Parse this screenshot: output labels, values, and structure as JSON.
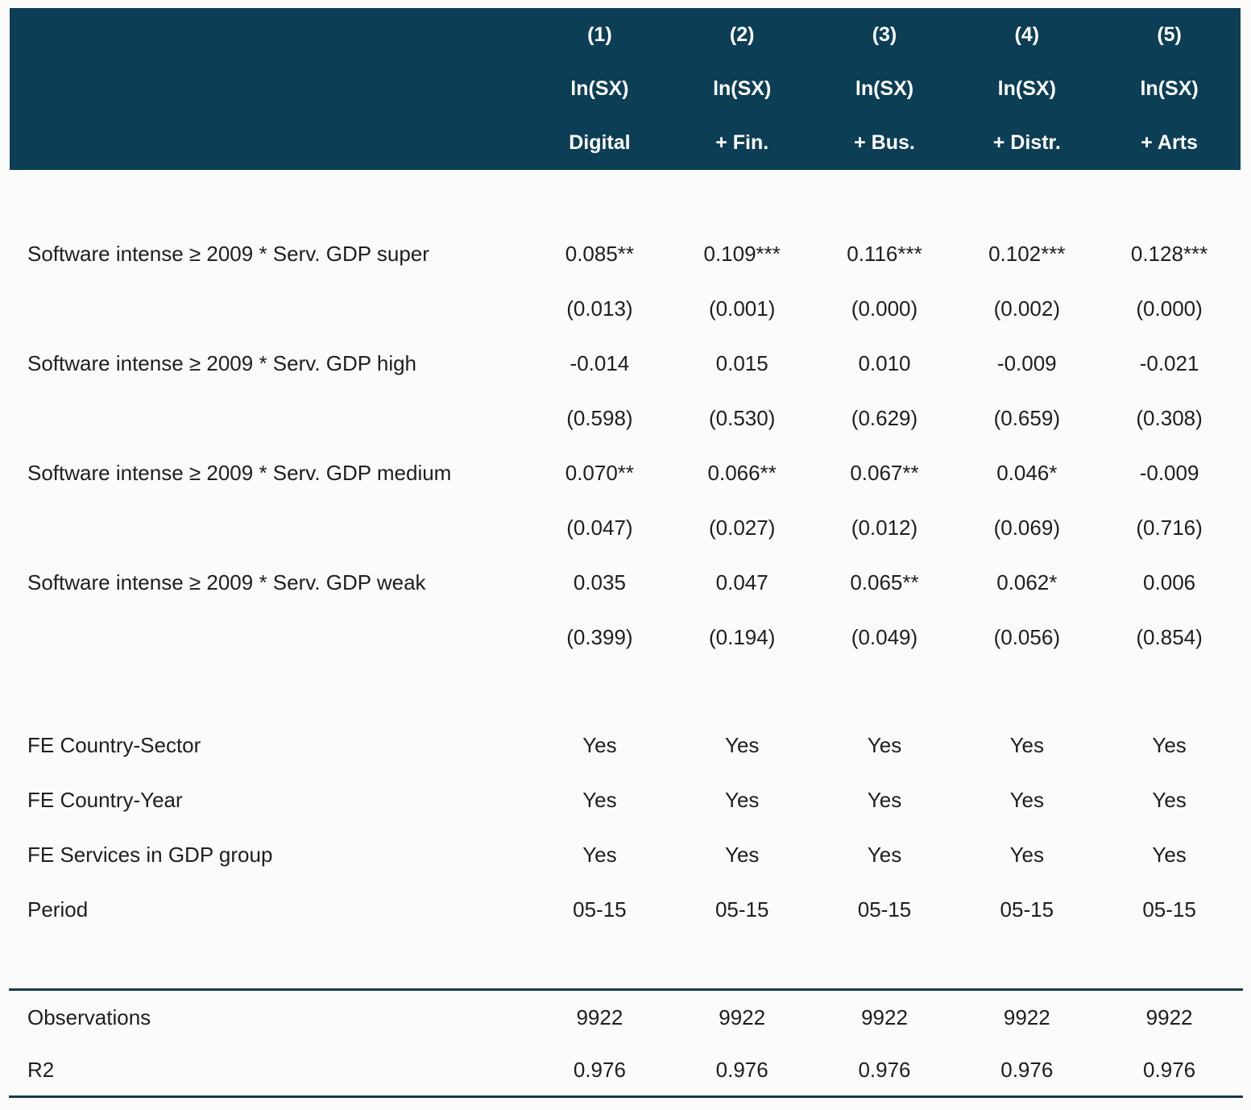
{
  "table": {
    "header": {
      "columns": [
        {
          "num": "(1)",
          "dep": "ln(SX)",
          "model": "Digital"
        },
        {
          "num": "(2)",
          "dep": "ln(SX)",
          "model": "+ Fin."
        },
        {
          "num": "(3)",
          "dep": "ln(SX)",
          "model": "+ Bus."
        },
        {
          "num": "(4)",
          "dep": "ln(SX)",
          "model": "+ Distr."
        },
        {
          "num": "(5)",
          "dep": "ln(SX)",
          "model": "+ Arts"
        }
      ]
    },
    "coef_rows": [
      {
        "label": "Software intense ≥ 2009 * Serv. GDP super",
        "coefs": [
          "0.085**",
          "0.109***",
          "0.116***",
          "0.102***",
          "0.128***"
        ],
        "pvals": [
          "(0.013)",
          "(0.001)",
          "(0.000)",
          "(0.002)",
          "(0.000)"
        ]
      },
      {
        "label": "Software intense ≥ 2009 * Serv. GDP high",
        "coefs": [
          "-0.014",
          "0.015",
          "0.010",
          "-0.009",
          "-0.021"
        ],
        "pvals": [
          "(0.598)",
          "(0.530)",
          "(0.629)",
          "(0.659)",
          "(0.308)"
        ]
      },
      {
        "label": "Software intense ≥ 2009 * Serv. GDP medium",
        "coefs": [
          "0.070**",
          "0.066**",
          "0.067**",
          "0.046*",
          "-0.009"
        ],
        "pvals": [
          "(0.047)",
          "(0.027)",
          "(0.012)",
          "(0.069)",
          "(0.716)"
        ]
      },
      {
        "label": "Software intense ≥ 2009 * Serv. GDP weak",
        "coefs": [
          "0.035",
          "0.047",
          "0.065**",
          "0.062*",
          "0.006"
        ],
        "pvals": [
          "(0.399)",
          "(0.194)",
          "(0.049)",
          "(0.056)",
          "(0.854)"
        ]
      }
    ],
    "fe_rows": [
      {
        "label": "FE Country-Sector",
        "values": [
          "Yes",
          "Yes",
          "Yes",
          "Yes",
          "Yes"
        ]
      },
      {
        "label": "FE Country-Year",
        "values": [
          "Yes",
          "Yes",
          "Yes",
          "Yes",
          "Yes"
        ]
      },
      {
        "label": "FE Services in GDP group",
        "values": [
          "Yes",
          "Yes",
          "Yes",
          "Yes",
          "Yes"
        ]
      },
      {
        "label": "Period",
        "values": [
          "05-15",
          "05-15",
          "05-15",
          "05-15",
          "05-15"
        ]
      }
    ],
    "stat_rows": [
      {
        "label": "Observations",
        "values": [
          "9922",
          "9922",
          "9922",
          "9922",
          "9922"
        ]
      },
      {
        "label": "R2",
        "values": [
          "0.976",
          "0.976",
          "0.976",
          "0.976",
          "0.976"
        ]
      }
    ],
    "colors": {
      "header_bg": "#0c3e56",
      "header_text": "#ffffff",
      "rule": "#173b4b",
      "body_text": "#1e1e1e",
      "page_bg": "#fbfbfa"
    }
  }
}
